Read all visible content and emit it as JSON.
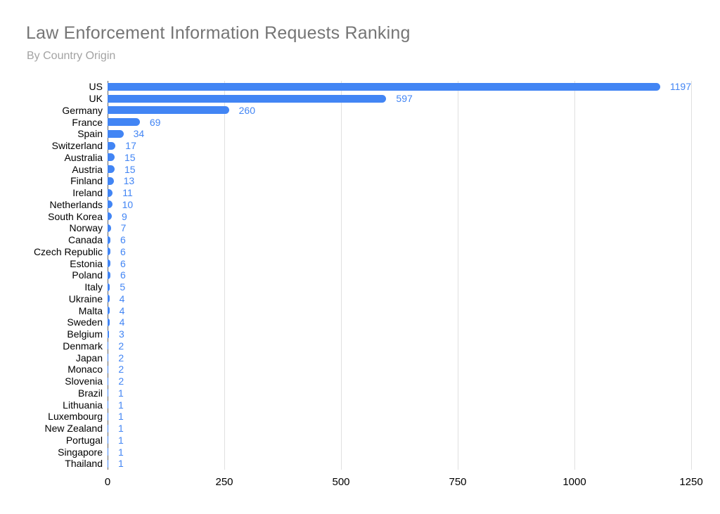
{
  "chart_data": {
    "type": "bar",
    "orientation": "horizontal",
    "title": "Law Enforcement Information Requests Ranking",
    "subtitle": "By Country Origin",
    "xlabel": "",
    "ylabel": "",
    "categories": [
      "US",
      "UK",
      "Germany",
      "France",
      "Spain",
      "Switzerland",
      "Australia",
      "Austria",
      "Finland",
      "Ireland",
      "Netherlands",
      "South Korea",
      "Norway",
      "Canada",
      "Czech Republic",
      "Estonia",
      "Poland",
      "Italy",
      "Ukraine",
      "Malta",
      "Sweden",
      "Belgium",
      "Denmark",
      "Japan",
      "Monaco",
      "Slovenia",
      "Brazil",
      "Lithuania",
      "Luxembourg",
      "New Zealand",
      "Portugal",
      "Singapore",
      "Thailand"
    ],
    "values": [
      1197,
      597,
      260,
      69,
      34,
      17,
      15,
      15,
      13,
      11,
      10,
      9,
      7,
      6,
      6,
      6,
      6,
      5,
      4,
      4,
      4,
      3,
      2,
      2,
      2,
      2,
      1,
      1,
      1,
      1,
      1,
      1,
      1
    ],
    "xlim": [
      0,
      1250
    ],
    "x_ticks": [
      0,
      250,
      500,
      750,
      1000,
      1250
    ],
    "grid": true,
    "legend": "none",
    "annotations": "value shown at end of each bar"
  },
  "colors": {
    "bar_color": "#4285f4",
    "value_label_color": "#4285f4",
    "category_label_color": "#000000",
    "axis_label_color": "#000000",
    "title_color": "#757575",
    "subtitle_color": "#a3a3a3",
    "gridline_color": "#e0e0e0",
    "baseline_color": "#616161",
    "background": "#ffffff"
  }
}
